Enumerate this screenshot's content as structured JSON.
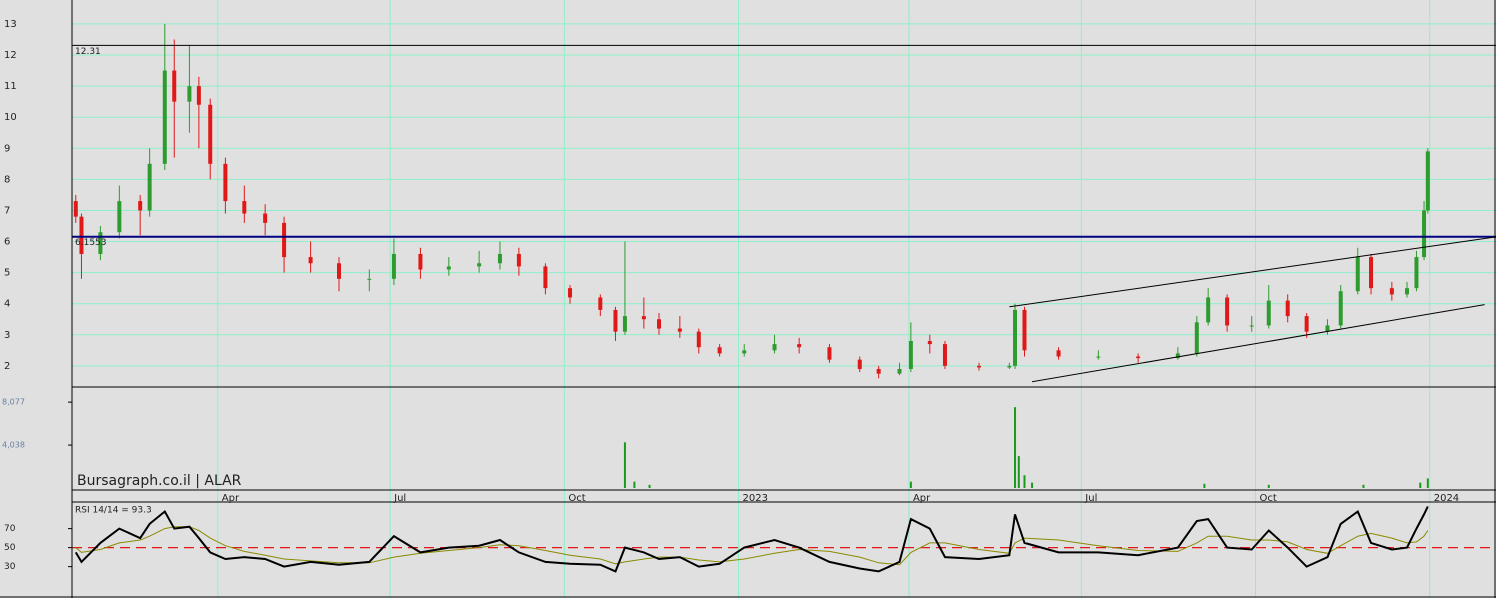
{
  "chart_data": {
    "type": "candlestick",
    "watermark": "Bursagraph.co.il | ALAR",
    "x": [
      15,
      18,
      28,
      38,
      49,
      54,
      62,
      67,
      75,
      80,
      86,
      94,
      104,
      115,
      125,
      139,
      154,
      170,
      183,
      197,
      212,
      228,
      239,
      249,
      263,
      276,
      292,
      300,
      305,
      315,
      323,
      334,
      344,
      355,
      368,
      384,
      397,
      413,
      429,
      439,
      450,
      456,
      466,
      474,
      492,
      508,
      511,
      516,
      534,
      555,
      576,
      597,
      607,
      613,
      623,
      636,
      645,
      655,
      665,
      676,
      683,
      692,
      699,
      710,
      718,
      723,
      727,
      729
    ],
    "open": [
      7.3,
      6.8,
      5.6,
      6.3,
      7.3,
      7.0,
      8.5,
      11.5,
      10.5,
      11.0,
      10.4,
      8.5,
      7.3,
      6.9,
      6.6,
      5.5,
      5.3,
      4.8,
      4.8,
      5.6,
      5.1,
      5.2,
      5.3,
      5.6,
      5.2,
      4.5,
      4.2,
      3.8,
      3.1,
      3.6,
      3.5,
      3.2,
      3.1,
      2.6,
      2.4,
      2.5,
      2.7,
      2.6,
      2.2,
      1.9,
      1.75,
      1.9,
      2.8,
      2.7,
      2.0,
      1.95,
      2.0,
      3.8,
      2.5,
      2.3,
      2.3,
      2.25,
      2.4,
      3.4,
      4.2,
      3.3,
      3.3,
      4.1,
      3.6,
      3.1,
      3.3,
      4.4,
      5.5,
      4.5,
      4.3,
      4.5,
      5.5,
      7.0
    ],
    "high": [
      7.5,
      6.9,
      6.5,
      7.8,
      7.5,
      9.0,
      13.0,
      12.5,
      12.3,
      11.3,
      10.6,
      8.7,
      7.8,
      7.2,
      6.8,
      6.0,
      5.5,
      5.1,
      6.1,
      5.8,
      5.5,
      5.7,
      6.0,
      5.8,
      5.3,
      4.6,
      4.3,
      3.9,
      6.0,
      4.2,
      3.7,
      3.6,
      3.2,
      2.7,
      2.7,
      3.0,
      2.9,
      2.7,
      2.3,
      2.0,
      2.1,
      3.4,
      3.0,
      2.8,
      2.1,
      2.1,
      4.0,
      3.9,
      2.6,
      2.5,
      2.4,
      2.6,
      3.6,
      4.5,
      4.3,
      3.6,
      4.6,
      4.3,
      3.7,
      3.5,
      4.6,
      5.8,
      5.6,
      4.7,
      4.7,
      5.7,
      7.3,
      9.0
    ],
    "low": [
      6.6,
      4.8,
      5.4,
      6.1,
      6.2,
      6.8,
      8.3,
      8.7,
      9.5,
      9.0,
      8.0,
      6.9,
      6.6,
      6.2,
      5.0,
      5.0,
      4.4,
      4.4,
      4.6,
      4.8,
      4.9,
      5.0,
      5.1,
      4.9,
      4.3,
      4.0,
      3.6,
      2.8,
      3.0,
      3.2,
      3.0,
      2.9,
      2.4,
      2.3,
      2.3,
      2.4,
      2.4,
      2.1,
      1.8,
      1.6,
      1.7,
      1.8,
      2.4,
      1.9,
      1.85,
      1.9,
      1.9,
      2.3,
      2.2,
      2.2,
      2.1,
      2.2,
      2.3,
      3.3,
      3.1,
      3.1,
      3.2,
      3.4,
      2.9,
      3.0,
      3.2,
      4.3,
      4.3,
      4.1,
      4.2,
      4.4,
      5.4,
      6.9
    ],
    "close": [
      6.8,
      5.6,
      6.3,
      7.3,
      7.0,
      8.5,
      11.5,
      10.5,
      11.0,
      10.4,
      8.5,
      7.3,
      6.9,
      6.6,
      5.5,
      5.3,
      4.8,
      4.8,
      5.6,
      5.1,
      5.2,
      5.3,
      5.6,
      5.2,
      4.5,
      4.2,
      3.8,
      3.1,
      3.6,
      3.5,
      3.2,
      3.1,
      2.6,
      2.4,
      2.5,
      2.7,
      2.6,
      2.2,
      1.9,
      1.75,
      1.9,
      2.8,
      2.7,
      2.0,
      1.95,
      2.0,
      3.8,
      2.5,
      2.3,
      2.3,
      2.25,
      2.4,
      3.4,
      4.2,
      3.3,
      3.3,
      4.1,
      3.6,
      3.1,
      3.3,
      4.4,
      5.5,
      4.5,
      4.3,
      4.5,
      5.5,
      7.0,
      8.9
    ],
    "up_color": "#2e9b2e",
    "down_color": "#e01818",
    "xlim": [
      13,
      765
    ],
    "xticks": [
      {
        "value": 90,
        "label": "Apr"
      },
      {
        "value": 181,
        "label": "Jul"
      },
      {
        "value": 273,
        "label": "Oct"
      },
      {
        "value": 365,
        "label": "2023"
      },
      {
        "value": 455,
        "label": "Apr"
      },
      {
        "value": 546,
        "label": "Jul"
      },
      {
        "value": 638,
        "label": "Oct"
      },
      {
        "value": 730,
        "label": "2024"
      }
    ],
    "ylim": [
      1.32,
      13.77
    ],
    "yticks": [
      2,
      3,
      4,
      5,
      6,
      7,
      8,
      9,
      10,
      11,
      12,
      13
    ],
    "grid": true,
    "hlines": [
      {
        "value": 12.31,
        "label": "12.31",
        "color": "#000000"
      },
      {
        "value": 6.1553,
        "label": "6.1553",
        "color": "#000080"
      }
    ],
    "trendlines": [
      {
        "x": [
          508,
          765
        ],
        "y": [
          3.9,
          6.15
        ]
      },
      {
        "x": [
          520,
          759
        ],
        "y": [
          1.49,
          3.97
        ]
      }
    ],
    "volume": {
      "x": [
        305,
        310,
        318,
        456,
        511,
        513,
        516,
        520,
        611,
        645,
        695,
        725,
        729
      ],
      "values": [
        4300,
        600,
        300,
        600,
        7600,
        3000,
        1200,
        500,
        400,
        300,
        300,
        500,
        900
      ],
      "color": "#1a9a1a",
      "ylim": [
        0,
        9500
      ],
      "yticks": [
        {
          "value": 8077,
          "label": "8,077"
        },
        {
          "value": 4038,
          "label": "4,038"
        }
      ]
    },
    "rsi": {
      "label": "RSI 14/14 = 93.3",
      "values": [
        45,
        35,
        55,
        70,
        60,
        75,
        88,
        70,
        72,
        60,
        45,
        38,
        40,
        38,
        30,
        35,
        32,
        35,
        62,
        45,
        50,
        52,
        58,
        45,
        35,
        33,
        32,
        25,
        50,
        45,
        38,
        40,
        30,
        33,
        50,
        58,
        50,
        35,
        28,
        25,
        35,
        80,
        70,
        40,
        38,
        42,
        85,
        55,
        45,
        45,
        42,
        50,
        78,
        80,
        50,
        48,
        68,
        50,
        30,
        40,
        75,
        88,
        55,
        48,
        50,
        70,
        85,
        93.3
      ],
      "ma": [
        50,
        45,
        48,
        55,
        58,
        62,
        70,
        72,
        72,
        68,
        60,
        52,
        46,
        42,
        38,
        36,
        34,
        34,
        40,
        44,
        47,
        50,
        53,
        52,
        47,
        42,
        38,
        33,
        35,
        38,
        40,
        40,
        37,
        35,
        38,
        44,
        48,
        46,
        40,
        34,
        32,
        45,
        55,
        55,
        48,
        44,
        55,
        60,
        58,
        52,
        47,
        46,
        55,
        62,
        62,
        58,
        58,
        56,
        48,
        44,
        52,
        62,
        65,
        60,
        55,
        56,
        62,
        68
      ],
      "color": "#000000",
      "ma_color": "#8a8a00",
      "midline": 50,
      "midline_color": "#e01818",
      "ylim": [
        -3,
        98
      ],
      "yticks": [
        30,
        50,
        70
      ]
    }
  }
}
